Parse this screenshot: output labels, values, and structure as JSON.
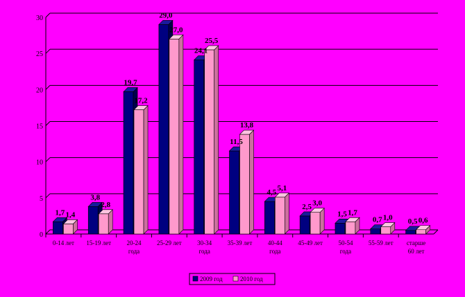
{
  "colors": {
    "background": "#ff00ff",
    "series_2009_front": "#000080",
    "series_2009_top": "#1a1a9e",
    "series_2009_side": "#00004d",
    "series_2010_front": "#ff99cc",
    "series_2010_top": "#ffc4e2",
    "series_2010_side": "#cc6e9f"
  },
  "chart_data": {
    "type": "bar",
    "style": "3d-clustered",
    "title": "",
    "xlabel": "",
    "ylabel": "",
    "ylim": [
      0,
      30
    ],
    "y_ticks": [
      0,
      5,
      10,
      15,
      20,
      25,
      30
    ],
    "grid": "horizontal",
    "legend_position": "bottom",
    "categories": [
      [
        "0-14 лет"
      ],
      [
        "15-19 лет"
      ],
      [
        "20-24",
        "года"
      ],
      [
        "25-29 лет"
      ],
      [
        "30-34",
        "года"
      ],
      [
        "35-39 лет"
      ],
      [
        "40-44",
        "года"
      ],
      [
        "45-49 лет"
      ],
      [
        "50-54",
        "года"
      ],
      [
        "55-59 лет"
      ],
      [
        "старше",
        "60 лет"
      ]
    ],
    "series": [
      {
        "name": "2009 год",
        "values": [
          1.7,
          3.8,
          19.7,
          29.0,
          24.1,
          11.5,
          4.5,
          2.5,
          1.5,
          0.7,
          0.5
        ],
        "labels": [
          "1,7",
          "3,8",
          "19,7",
          "29,0",
          "24,1",
          "11,5",
          "4,5",
          "2,5",
          "1,5",
          "0,7",
          "0,5"
        ]
      },
      {
        "name": "2010 год",
        "values": [
          1.4,
          2.8,
          17.2,
          27.0,
          25.5,
          13.8,
          5.1,
          3.0,
          1.7,
          1.0,
          0.6
        ],
        "labels": [
          "1,4",
          "2,8",
          "17,2",
          "27,0",
          "25,5",
          "13,8",
          "5,1",
          "3,0",
          "1,7",
          "1,0",
          "0,6"
        ]
      }
    ]
  }
}
